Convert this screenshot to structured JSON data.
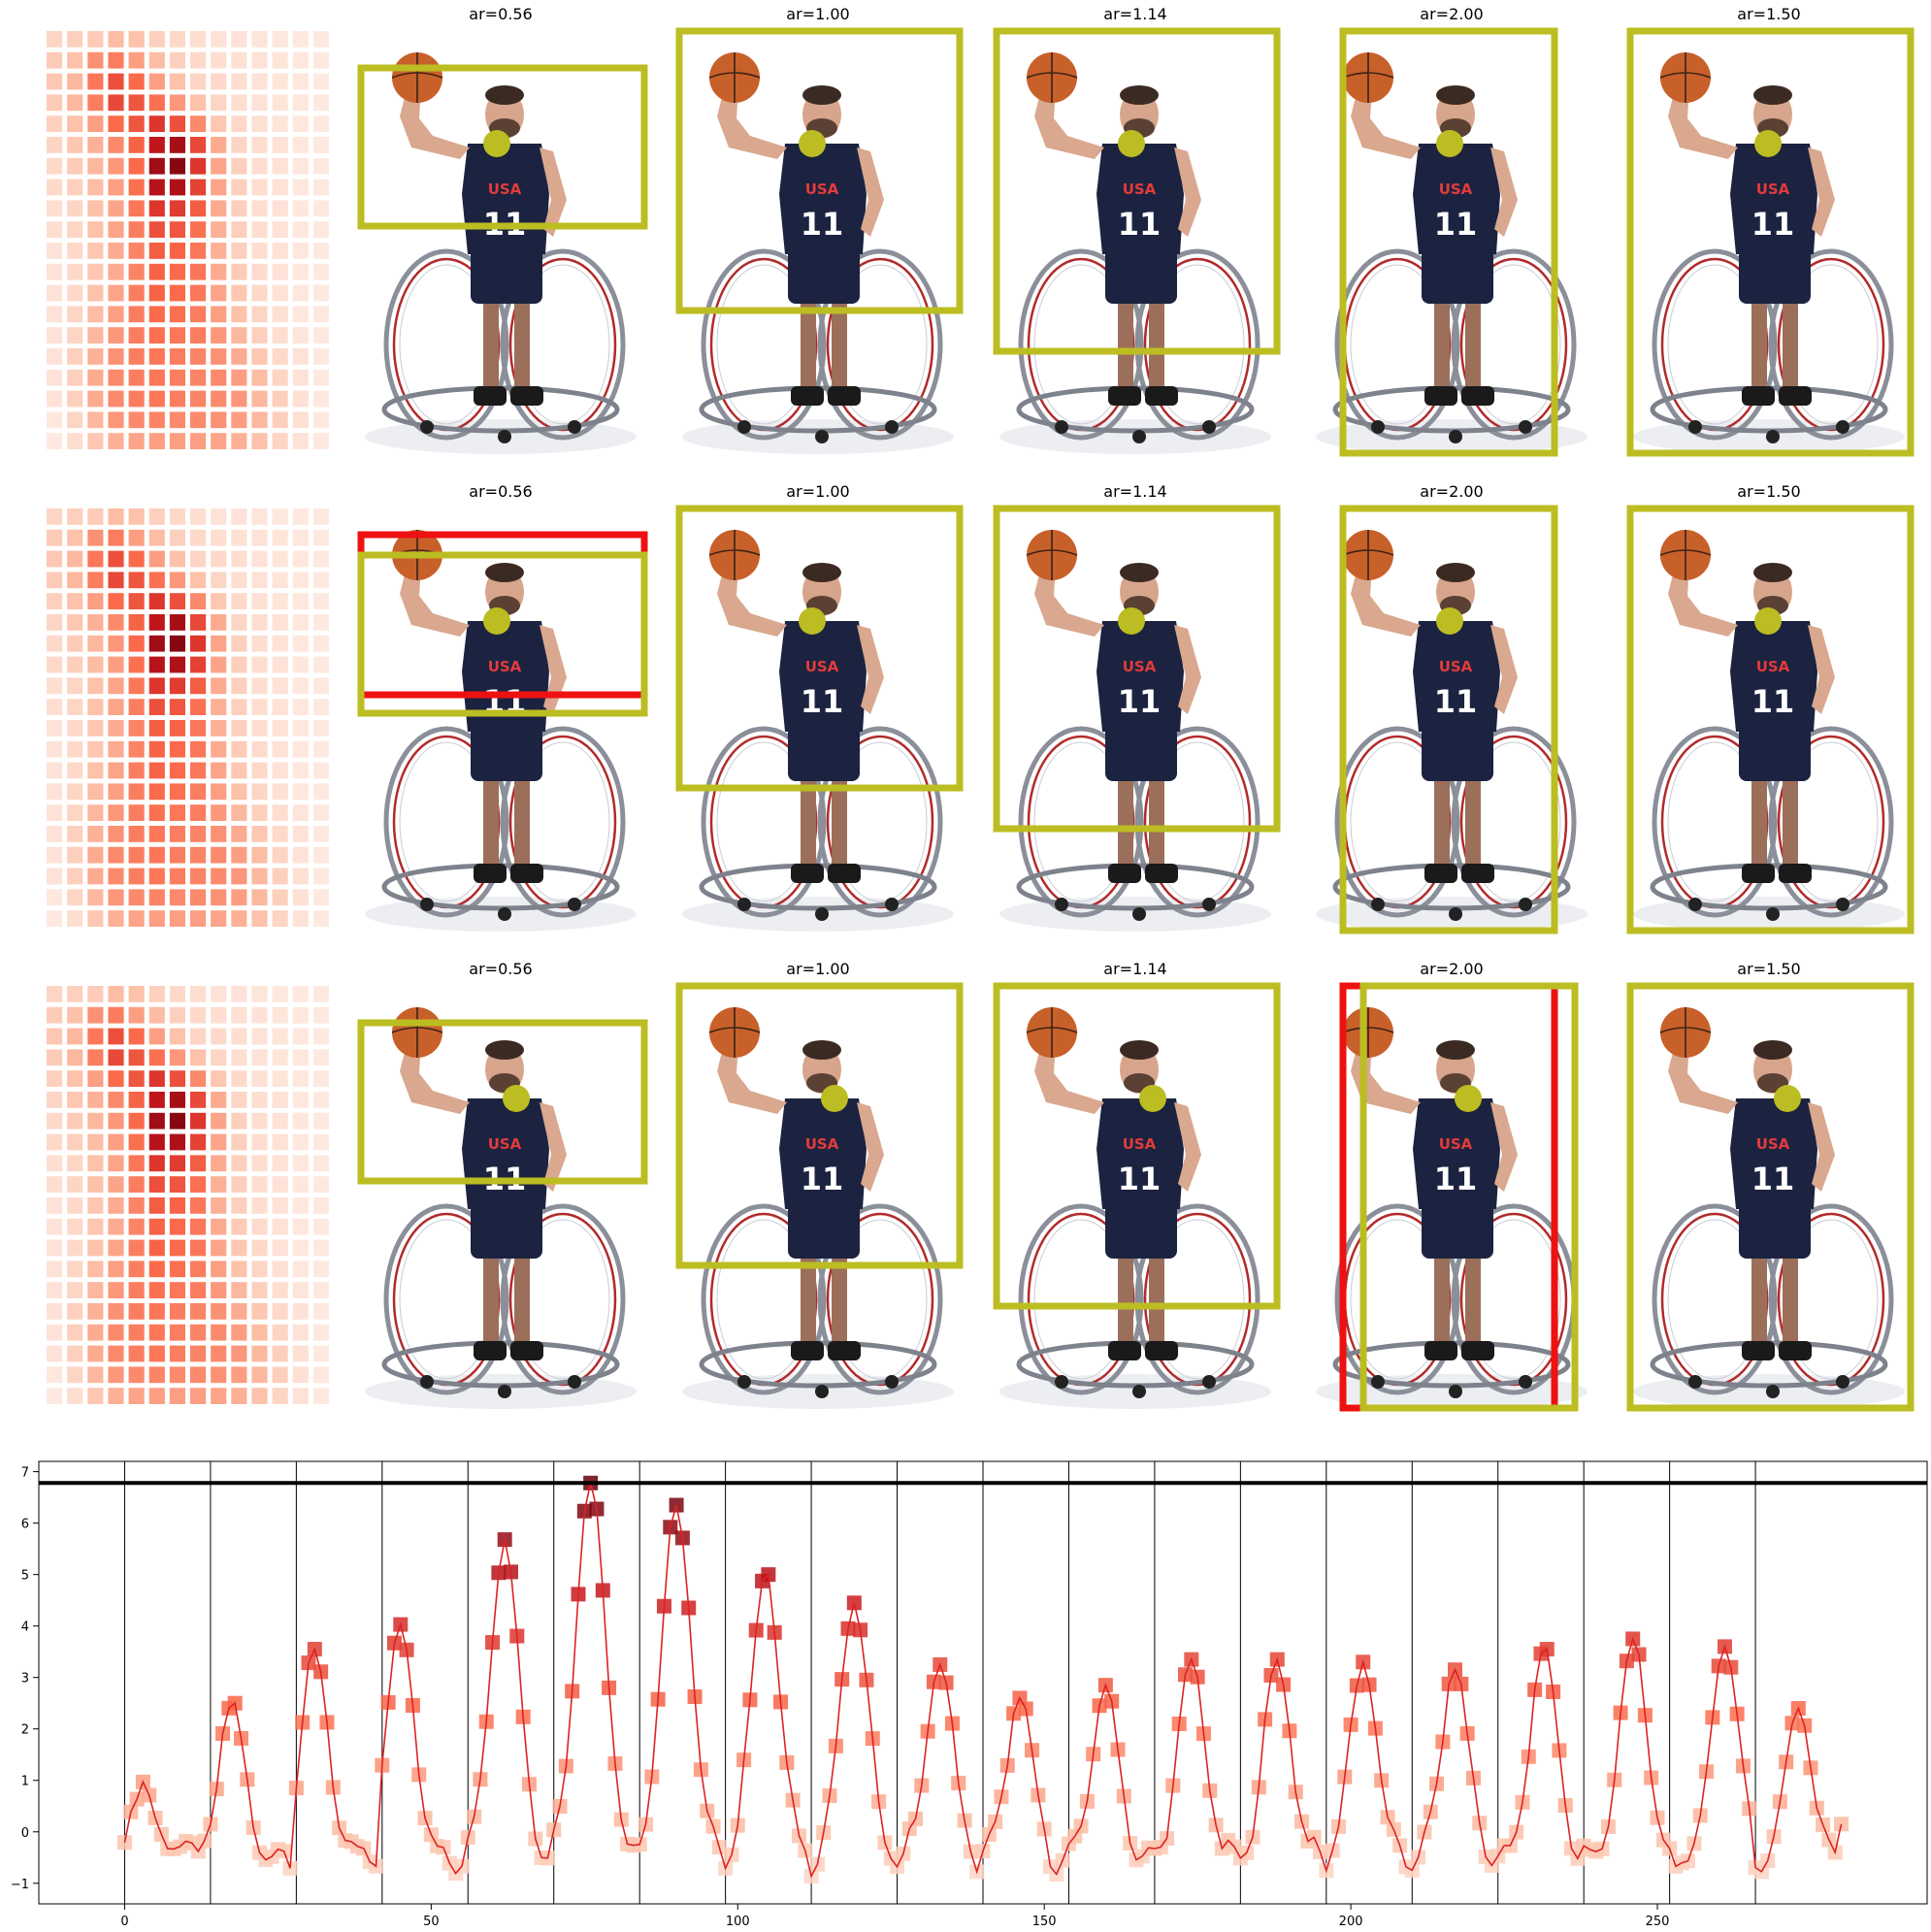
{
  "figure": {
    "rows": [
      {
        "heatmap": [
          [
            0.14,
            0.16,
            0.18,
            0.24,
            0.22,
            0.16,
            0.12,
            0.1,
            0.08,
            0.08,
            0.07,
            0.06,
            0.05,
            0.05
          ],
          [
            0.18,
            0.22,
            0.38,
            0.44,
            0.34,
            0.24,
            0.16,
            0.12,
            0.1,
            0.09,
            0.08,
            0.07,
            0.06,
            0.05
          ],
          [
            0.2,
            0.26,
            0.46,
            0.58,
            0.5,
            0.34,
            0.22,
            0.14,
            0.12,
            0.1,
            0.08,
            0.07,
            0.06,
            0.05
          ],
          [
            0.18,
            0.26,
            0.44,
            0.6,
            0.56,
            0.48,
            0.36,
            0.22,
            0.14,
            0.1,
            0.08,
            0.07,
            0.06,
            0.05
          ],
          [
            0.16,
            0.22,
            0.34,
            0.5,
            0.56,
            0.66,
            0.58,
            0.4,
            0.2,
            0.12,
            0.09,
            0.07,
            0.06,
            0.05
          ],
          [
            0.14,
            0.2,
            0.28,
            0.4,
            0.52,
            0.78,
            0.84,
            0.6,
            0.3,
            0.14,
            0.1,
            0.08,
            0.06,
            0.05
          ],
          [
            0.12,
            0.18,
            0.26,
            0.36,
            0.5,
            0.86,
            0.92,
            0.66,
            0.32,
            0.16,
            0.1,
            0.08,
            0.06,
            0.05
          ],
          [
            0.12,
            0.16,
            0.24,
            0.34,
            0.48,
            0.8,
            0.82,
            0.62,
            0.32,
            0.16,
            0.1,
            0.08,
            0.06,
            0.05
          ],
          [
            0.1,
            0.14,
            0.22,
            0.32,
            0.46,
            0.66,
            0.64,
            0.54,
            0.3,
            0.16,
            0.1,
            0.08,
            0.06,
            0.05
          ],
          [
            0.1,
            0.14,
            0.22,
            0.32,
            0.44,
            0.58,
            0.56,
            0.48,
            0.28,
            0.16,
            0.1,
            0.08,
            0.06,
            0.05
          ],
          [
            0.08,
            0.12,
            0.2,
            0.3,
            0.42,
            0.54,
            0.52,
            0.46,
            0.28,
            0.16,
            0.1,
            0.08,
            0.06,
            0.05
          ],
          [
            0.08,
            0.12,
            0.2,
            0.3,
            0.42,
            0.52,
            0.5,
            0.46,
            0.3,
            0.18,
            0.11,
            0.08,
            0.06,
            0.05
          ],
          [
            0.08,
            0.12,
            0.22,
            0.32,
            0.44,
            0.52,
            0.5,
            0.46,
            0.32,
            0.2,
            0.12,
            0.08,
            0.06,
            0.05
          ],
          [
            0.08,
            0.14,
            0.24,
            0.34,
            0.44,
            0.5,
            0.48,
            0.44,
            0.34,
            0.22,
            0.14,
            0.09,
            0.06,
            0.05
          ],
          [
            0.08,
            0.14,
            0.26,
            0.36,
            0.44,
            0.48,
            0.46,
            0.44,
            0.36,
            0.26,
            0.16,
            0.1,
            0.07,
            0.05
          ],
          [
            0.08,
            0.16,
            0.28,
            0.38,
            0.44,
            0.46,
            0.44,
            0.42,
            0.38,
            0.3,
            0.2,
            0.12,
            0.08,
            0.05
          ],
          [
            0.08,
            0.16,
            0.3,
            0.4,
            0.44,
            0.46,
            0.44,
            0.42,
            0.4,
            0.34,
            0.24,
            0.14,
            0.08,
            0.05
          ],
          [
            0.08,
            0.16,
            0.3,
            0.4,
            0.44,
            0.46,
            0.44,
            0.42,
            0.4,
            0.36,
            0.26,
            0.16,
            0.09,
            0.05
          ],
          [
            0.06,
            0.14,
            0.26,
            0.36,
            0.4,
            0.42,
            0.4,
            0.4,
            0.38,
            0.34,
            0.26,
            0.16,
            0.09,
            0.05
          ],
          [
            0.05,
            0.1,
            0.2,
            0.28,
            0.32,
            0.34,
            0.34,
            0.34,
            0.32,
            0.28,
            0.22,
            0.14,
            0.08,
            0.05
          ]
        ],
        "panels": [
          {
            "title": "ar=0.56",
            "box": {
              "ar": 0.56,
              "color": "#bcbd22"
            }
          },
          {
            "title": "ar=1.00",
            "box": {
              "ar": 1.0,
              "color": "#bcbd22"
            }
          },
          {
            "title": "ar=1.14",
            "box": {
              "ar": 1.14,
              "color": "#bcbd22"
            }
          },
          {
            "title": "ar=2.00",
            "box": {
              "ar": 2.0,
              "color": "#bcbd22"
            }
          },
          {
            "title": "ar=1.50",
            "box": {
              "ar": 1.5,
              "color": "#bcbd22"
            }
          }
        ]
      },
      {
        "panels": [
          {
            "title": "ar=0.56",
            "box": {
              "ar": 0.56,
              "color": "#bcbd22"
            },
            "red_box": true
          },
          {
            "title": "ar=1.00",
            "box": {
              "ar": 1.0,
              "color": "#bcbd22"
            }
          },
          {
            "title": "ar=1.14",
            "box": {
              "ar": 1.14,
              "color": "#bcbd22"
            }
          },
          {
            "title": "ar=2.00",
            "box": {
              "ar": 2.0,
              "color": "#bcbd22"
            }
          },
          {
            "title": "ar=1.50",
            "box": {
              "ar": 1.5,
              "color": "#bcbd22"
            }
          }
        ]
      },
      {
        "panels": [
          {
            "title": "ar=0.56",
            "box": {
              "ar": 0.56,
              "color": "#bcbd22"
            }
          },
          {
            "title": "ar=1.00",
            "box": {
              "ar": 1.0,
              "color": "#bcbd22"
            }
          },
          {
            "title": "ar=1.14",
            "box": {
              "ar": 1.14,
              "color": "#bcbd22"
            }
          },
          {
            "title": "ar=2.00",
            "box": {
              "ar": 2.0,
              "color": "#bcbd22"
            },
            "red_box": true
          },
          {
            "title": "ar=1.50",
            "box": {
              "ar": 1.5,
              "color": "#bcbd22"
            }
          }
        ]
      }
    ],
    "photo_content": {
      "jersey_text": "USA",
      "jersey_number": "11"
    },
    "colors": {
      "box_yellow": "#bcbd22",
      "box_red": "#ee1111",
      "line_red": "#dd2222",
      "jersey_navy": "#1c2340",
      "ball_orange": "#c8602a"
    }
  },
  "chart_data": {
    "type": "line",
    "xlim": [
      -14,
      294
    ],
    "ylim": [
      -1.4,
      7.2
    ],
    "xticks": [
      0,
      50,
      100,
      150,
      200,
      250
    ],
    "yticks": [
      -1,
      0,
      1,
      2,
      3,
      4,
      5,
      6,
      7
    ],
    "hline": 6.78,
    "vlines": [
      0,
      14,
      28,
      42,
      56,
      70,
      84,
      98,
      112,
      126,
      140,
      154,
      168,
      182,
      196,
      210,
      224,
      238,
      252,
      266
    ],
    "peaks": [
      {
        "x0": 0,
        "peak_x": 3,
        "peak": 0.97
      },
      {
        "x0": 14,
        "peak_x": 17.5,
        "peak": 2.5
      },
      {
        "x0": 28,
        "peak_x": 31,
        "peak": 3.55
      },
      {
        "x0": 42,
        "peak_x": 45,
        "peak": 4.03
      },
      {
        "x0": 56,
        "peak_x": 62,
        "peak": 5.68
      },
      {
        "x0": 70,
        "peak_x": 76,
        "peak": 6.78
      },
      {
        "x0": 84,
        "peak_x": 90,
        "peak": 6.35
      },
      {
        "x0": 98,
        "peak_x": 104.5,
        "peak": 5.0
      },
      {
        "x0": 112,
        "peak_x": 119,
        "peak": 4.45
      },
      {
        "x0": 126,
        "peak_x": 133,
        "peak": 3.25
      },
      {
        "x0": 140,
        "peak_x": 146,
        "peak": 2.6
      },
      {
        "x0": 154,
        "peak_x": 160,
        "peak": 2.85
      },
      {
        "x0": 168,
        "peak_x": 174,
        "peak": 3.35
      },
      {
        "x0": 182,
        "peak_x": 188,
        "peak": 3.35
      },
      {
        "x0": 196,
        "peak_x": 202,
        "peak": 3.3
      },
      {
        "x0": 210,
        "peak_x": 217,
        "peak": 3.15
      },
      {
        "x0": 224,
        "peak_x": 231.5,
        "peak": 3.55
      },
      {
        "x0": 238,
        "peak_x": 246,
        "peak": 3.75
      },
      {
        "x0": 252,
        "peak_x": 261,
        "peak": 3.6
      },
      {
        "x0": 266,
        "peak_x": 273,
        "peak": 2.4
      }
    ]
  }
}
